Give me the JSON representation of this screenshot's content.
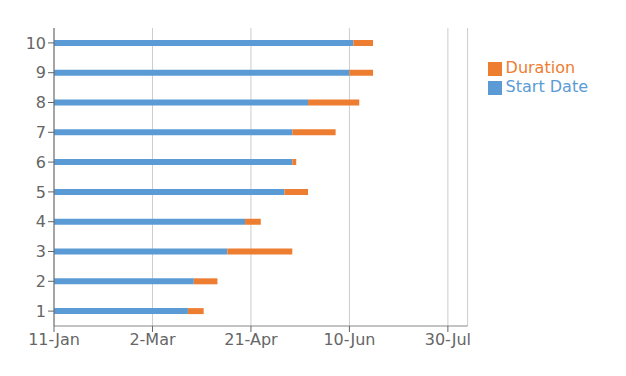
{
  "chart_data": {
    "type": "bar",
    "orientation": "horizontal",
    "stacked": true,
    "categories": [
      "1",
      "2",
      "3",
      "4",
      "5",
      "6",
      "7",
      "8",
      "9",
      "10"
    ],
    "series": [
      {
        "name": "Start Date",
        "color": "#5B9BD5",
        "values": [
          68,
          71,
          88,
          97,
          117,
          121,
          121,
          129,
          150,
          152
        ]
      },
      {
        "name": "Duration",
        "color": "#ED7D31",
        "values": [
          8,
          12,
          33,
          8,
          12,
          2,
          22,
          26,
          12,
          10
        ]
      }
    ],
    "xlim": [
      0,
      210
    ],
    "xticks": [
      {
        "value": 0,
        "label": "11-Jan"
      },
      {
        "value": 50,
        "label": "2-Mar"
      },
      {
        "value": 100,
        "label": "21-Apr"
      },
      {
        "value": 150,
        "label": "10-Jun"
      },
      {
        "value": 200,
        "label": "30-Jul"
      }
    ],
    "grid": true,
    "legend": "right"
  }
}
